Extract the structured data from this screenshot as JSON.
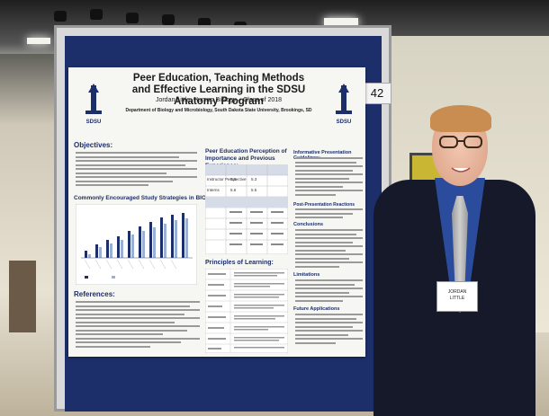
{
  "poster": {
    "title": "Peer Education, Teaching Methods and Effective Learning in the SDSU Anatomy Program",
    "author": "Jordan Little, Human Biology – Class of 2018",
    "department": "Department of Biology and Microbiology, South Dakota State University, Brookings, SD",
    "number": "42",
    "logo_text": "SDSU",
    "sections": {
      "objectives": "Objectives:",
      "table_title": "Peer Education Perception of Importance and Previous Experience:",
      "chart_title": "Commonly Encouraged Study Strategies in BIOL 221:",
      "references": "References:",
      "principles": "Principles of Learning:",
      "guidelines": "Informative Presentation Guidelines:",
      "post_reactions": "Post-Presentation Reactions",
      "conclusions": "Conclusions",
      "limitations": "Limitations",
      "future": "Future Applications"
    },
    "table_values": [
      "5.6",
      "5.3",
      "5.6",
      "5.5"
    ],
    "row_labels": [
      "Instructor Perspective",
      "Interns"
    ]
  },
  "badge": {
    "line1": "JORDAN",
    "line2": "LITTLE"
  },
  "colors": {
    "board": "#1d2f6b",
    "poster_bg": "#f6f6f2",
    "chart_bar": "#1d2f6b"
  }
}
